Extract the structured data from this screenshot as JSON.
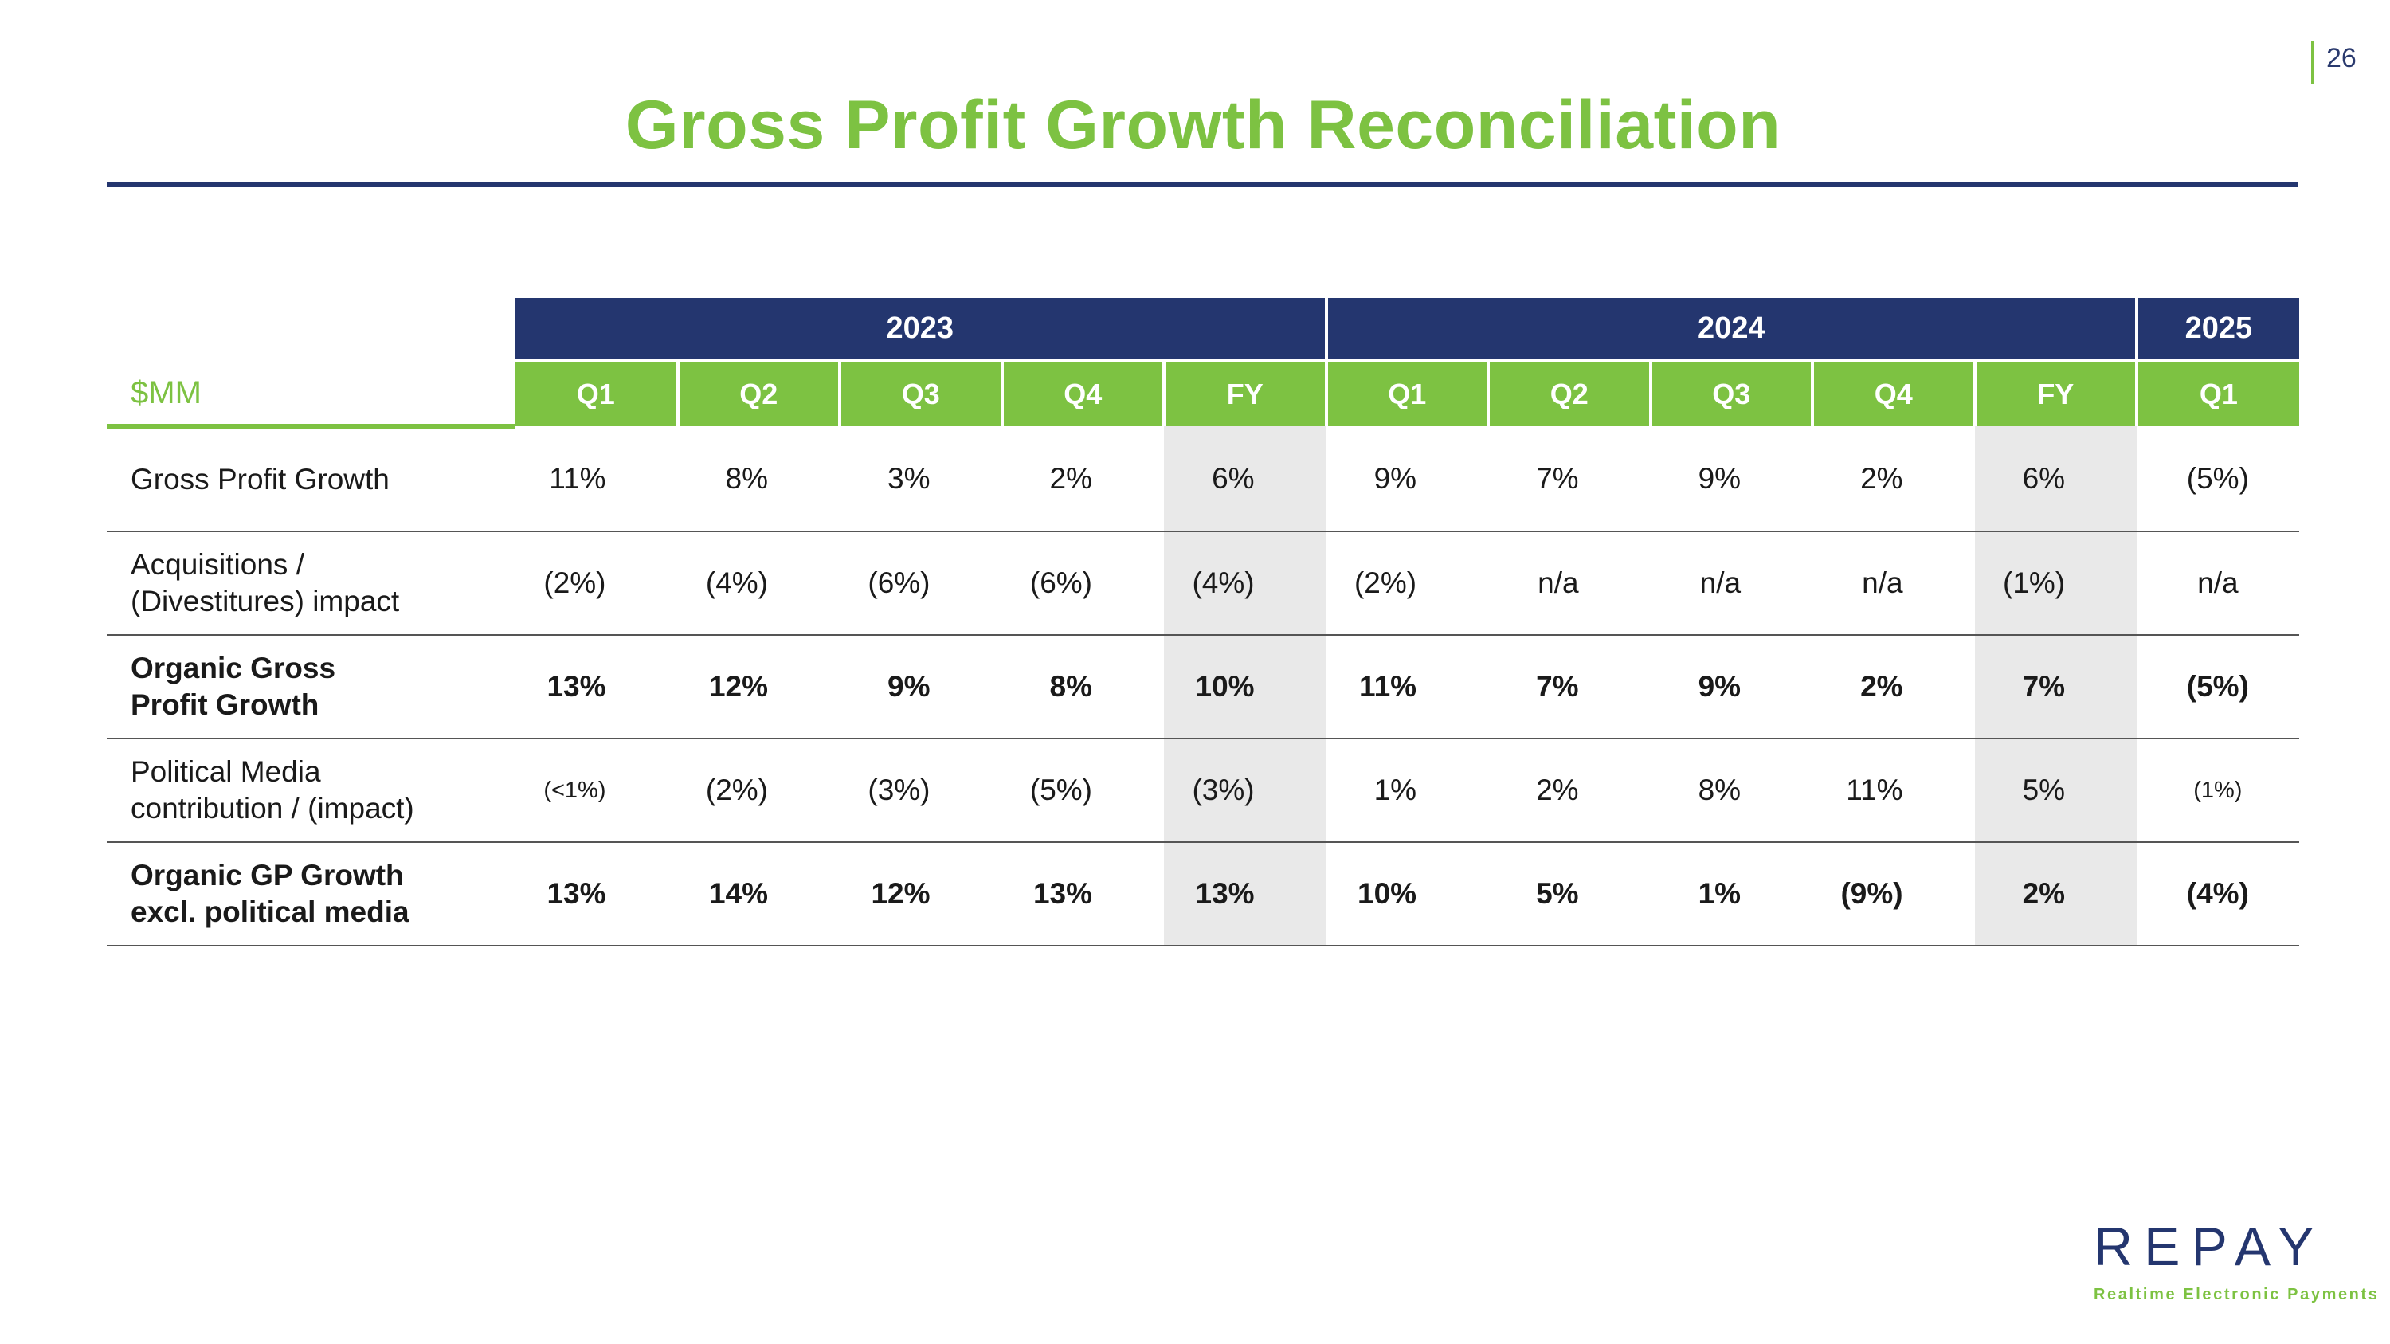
{
  "page_number": "26",
  "title": "Gross Profit Growth Reconciliation",
  "table": {
    "unit": "$MM",
    "years": [
      "2023",
      "2024",
      "2025"
    ],
    "quarters": [
      "Q1",
      "Q2",
      "Q3",
      "Q4",
      "FY",
      "Q1",
      "Q2",
      "Q3",
      "Q4",
      "FY",
      "Q1"
    ],
    "rows": [
      {
        "label_1": "Gross Profit Growth",
        "label_2": "",
        "values": [
          "11%",
          "8%",
          "3%",
          "2%",
          "6%",
          "9%",
          "7%",
          "9%",
          "2%",
          "6%",
          "(5%)"
        ]
      },
      {
        "label_1": "Acquisitions /",
        "label_2": "(Divestitures) impact",
        "values": [
          "(2%)",
          "(4%)",
          "(6%)",
          "(6%)",
          "(4%)",
          "(2%)",
          "n/a",
          "n/a",
          "n/a",
          "(1%)",
          "n/a"
        ]
      },
      {
        "label_1": "Organic Gross",
        "label_2": "Profit Growth",
        "values": [
          "13%",
          "12%",
          "9%",
          "8%",
          "10%",
          "11%",
          "7%",
          "9%",
          "2%",
          "7%",
          "(5%)"
        ]
      },
      {
        "label_1": "Political Media",
        "label_2": "contribution / (impact)",
        "values": [
          "(<1%)",
          "(2%)",
          "(3%)",
          "(5%)",
          "(3%)",
          "1%",
          "2%",
          "8%",
          "11%",
          "5%",
          "(1%)"
        ]
      },
      {
        "label_1": "Organic GP Growth",
        "label_2": "excl. political media",
        "values": [
          "13%",
          "14%",
          "12%",
          "13%",
          "13%",
          "10%",
          "5%",
          "1%",
          "(9%)",
          "2%",
          "(4%)"
        ]
      }
    ]
  },
  "logo": {
    "wordmark": "REPAY",
    "tagline": "Realtime Electronic Payments"
  },
  "colors": {
    "navy": "#24366f",
    "green": "#7dc242",
    "fy_shade": "#e9e9e9"
  }
}
